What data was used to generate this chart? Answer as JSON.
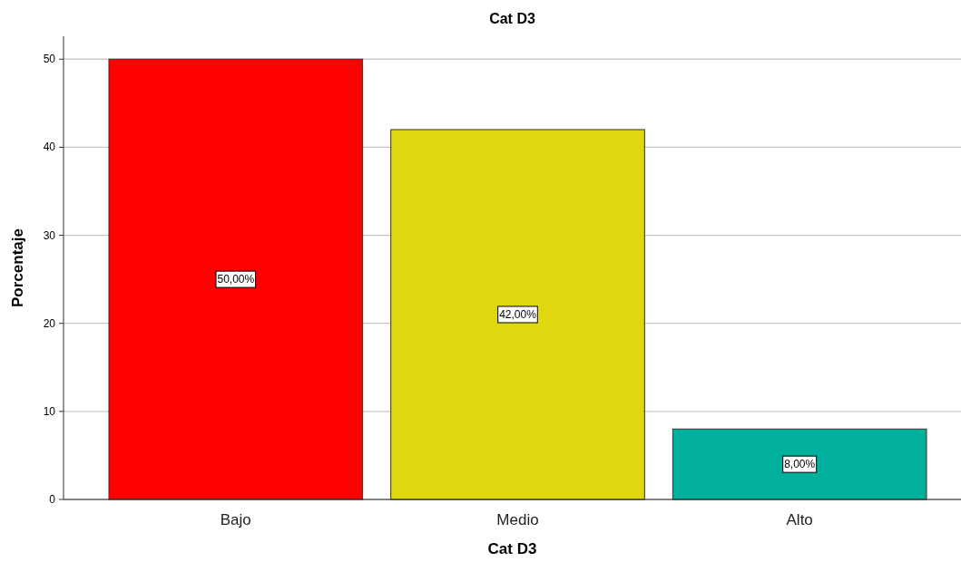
{
  "chart_data": {
    "type": "bar",
    "title": "Cat D3",
    "xlabel": "Cat D3",
    "ylabel": "Porcentaje",
    "categories": [
      "Bajo",
      "Medio",
      "Alto"
    ],
    "values": [
      50,
      42,
      8
    ],
    "colors": [
      "#ff0000",
      "#e1d70f",
      "#00b09d"
    ],
    "value_labels": [
      "50,00%",
      "42,00%",
      "8,00%"
    ],
    "ylim": [
      0,
      52.6
    ],
    "yticks": [
      0,
      10,
      20,
      30,
      40,
      50
    ],
    "grid": "y"
  }
}
